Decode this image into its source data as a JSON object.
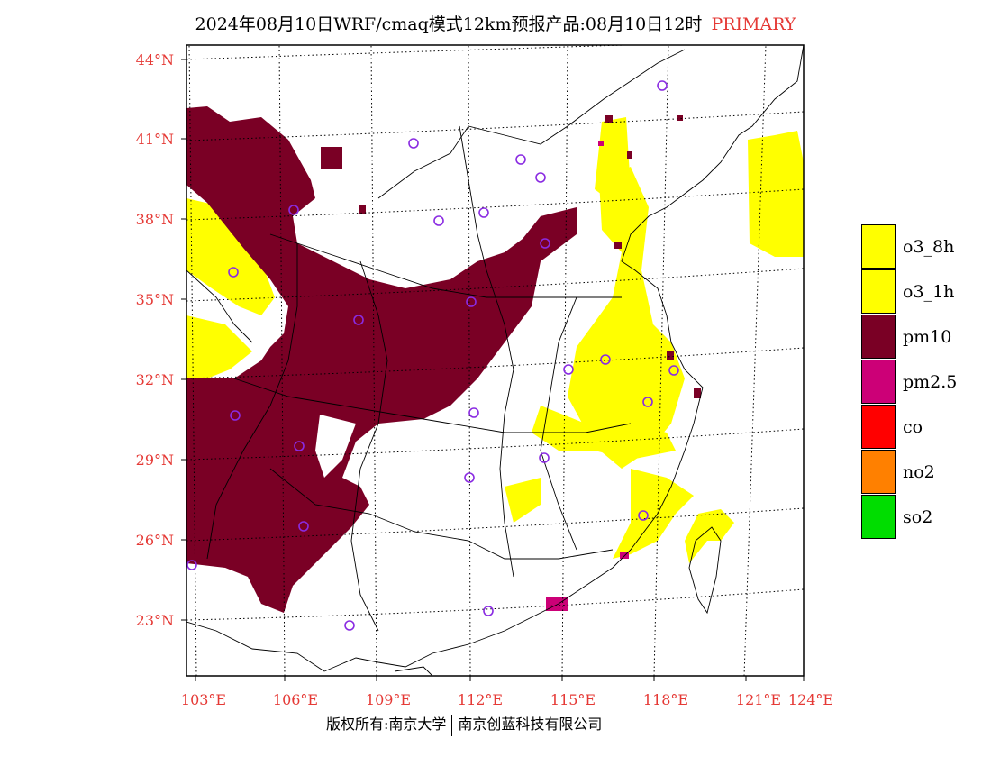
{
  "header": {
    "title": "2024年08月10日WRF/cmaq模式12km预报产品:08月10日12时",
    "tag": "PRIMARY"
  },
  "map": {
    "lat_labels": [
      "44°N",
      "41°N",
      "38°N",
      "35°N",
      "32°N",
      "29°N",
      "26°N",
      "23°N"
    ],
    "lon_labels": [
      "103°E",
      "106°E",
      "109°E",
      "112°E",
      "115°E",
      "118°E",
      "121°E",
      "124°E"
    ],
    "extent": {
      "lon": [
        102.8,
        124
      ],
      "lat": [
        21.8,
        44.4
      ]
    },
    "colors": {
      "pm10": "#7a0025",
      "o3": "#ffff00",
      "station": "#8a2be2",
      "label": "#e53935"
    }
  },
  "legend": {
    "items": [
      {
        "label": "o3_8h",
        "color": "#ffff00"
      },
      {
        "label": "o3_1h",
        "color": "#ffff00"
      },
      {
        "label": "pm10",
        "color": "#7a0025"
      },
      {
        "label": "pm2.5",
        "color": "#cc0077"
      },
      {
        "label": "co",
        "color": "#ff0000"
      },
      {
        "label": "no2",
        "color": "#ff8000"
      },
      {
        "label": "so2",
        "color": "#00dd00"
      }
    ]
  },
  "footer": {
    "left": "版权所有:南京大学",
    "right": "南京创蓝科技有限公司"
  }
}
